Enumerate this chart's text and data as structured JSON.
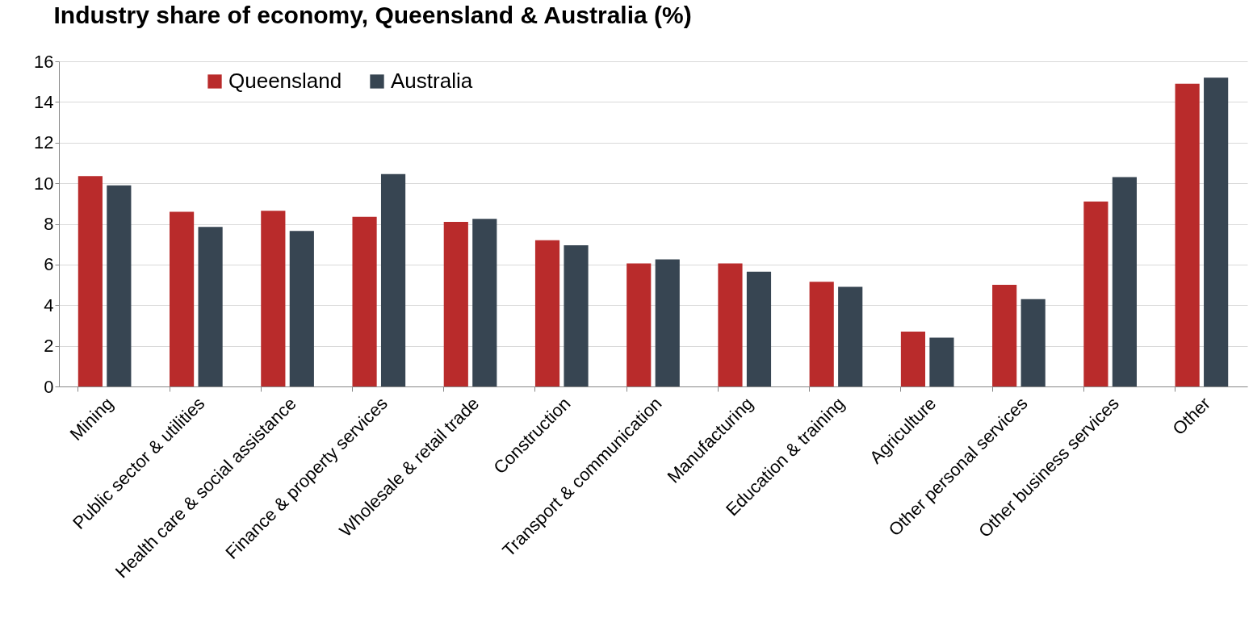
{
  "chart_data": {
    "type": "bar",
    "title": "Industry share of economy, Queensland & Australia (%)",
    "categories": [
      "Mining",
      "Public sector & utilities",
      "Health care & social assistance",
      "Finance & property services",
      "Wholesale & retail trade",
      "Construction",
      "Transport & communication",
      "Manufacturing",
      "Education & training",
      "Agriculture",
      "Other personal services",
      "Other business services",
      "Other"
    ],
    "series": [
      {
        "name": "Queensland",
        "color": "#b92b2b",
        "values": [
          10.35,
          8.6,
          8.65,
          8.35,
          8.1,
          7.2,
          6.05,
          6.05,
          5.15,
          2.7,
          5.0,
          9.1,
          14.9
        ]
      },
      {
        "name": "Australia",
        "color": "#374552",
        "values": [
          9.9,
          7.85,
          7.65,
          10.45,
          8.25,
          6.95,
          6.25,
          5.65,
          4.9,
          2.4,
          4.3,
          10.3,
          15.2
        ]
      }
    ],
    "ylim": [
      0,
      16
    ],
    "yticks": [
      0,
      2,
      4,
      6,
      8,
      10,
      12,
      14,
      16
    ],
    "grid": "y",
    "legend": "top left"
  }
}
